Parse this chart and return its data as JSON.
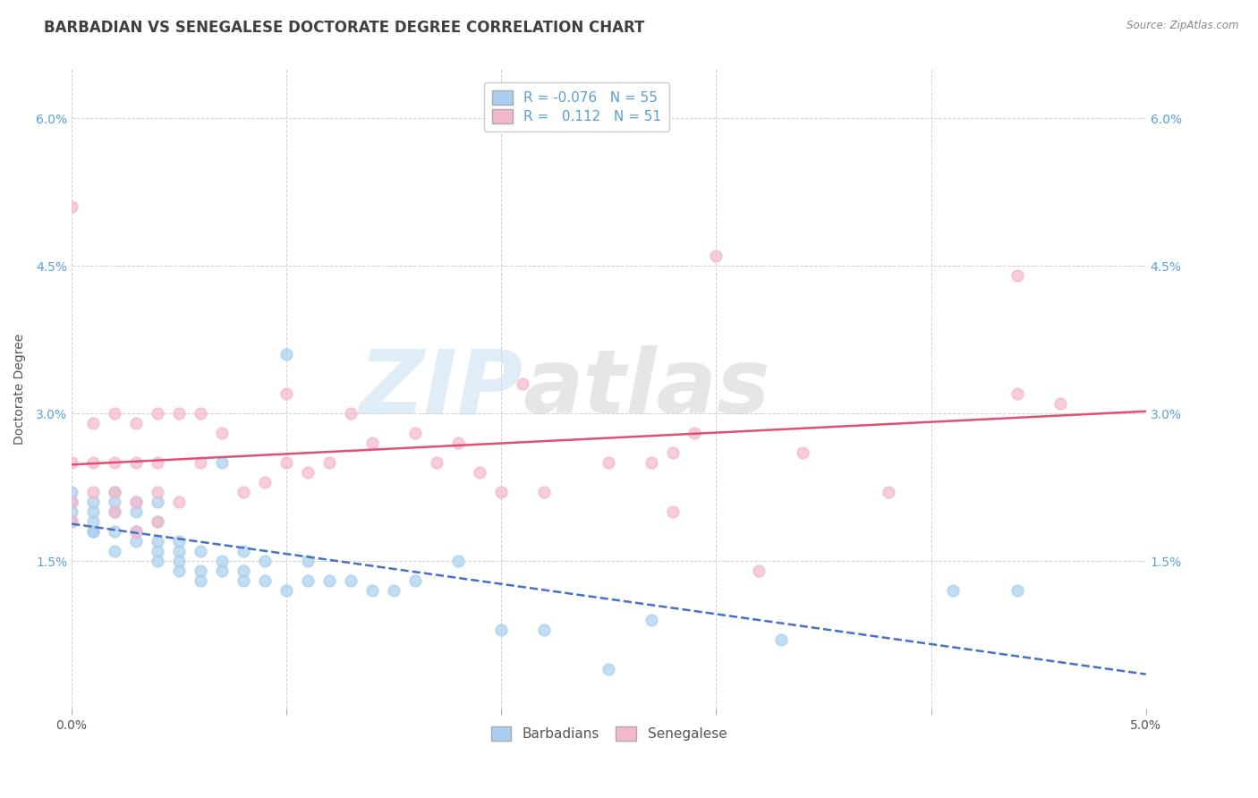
{
  "title": "BARBADIAN VS SENEGALESE DOCTORATE DEGREE CORRELATION CHART",
  "source_text": "Source: ZipAtlas.com",
  "ylabel": "Doctorate Degree",
  "legend_barbadians": "Barbadians",
  "legend_senegalese": "Senegalese",
  "R_barbadians": -0.076,
  "N_barbadians": 55,
  "R_senegalese": 0.112,
  "N_senegalese": 51,
  "xlim": [
    0.0,
    0.05
  ],
  "ylim": [
    0.0,
    0.065
  ],
  "xtick_vals": [
    0.0,
    0.01,
    0.02,
    0.03,
    0.04,
    0.05
  ],
  "xtick_labels": [
    "0.0%",
    "",
    "",
    "",
    "",
    "5.0%"
  ],
  "ytick_vals": [
    0.0,
    0.015,
    0.03,
    0.045,
    0.06
  ],
  "ytick_labels": [
    "",
    "1.5%",
    "3.0%",
    "4.5%",
    "6.0%"
  ],
  "color_barbadians": "#aacfee",
  "color_senegalese": "#f4b8cc",
  "color_line_barbadians": "#4472c4",
  "color_line_senegalese": "#e05070",
  "background_color": "#ffffff",
  "grid_color": "#cccccc",
  "title_color": "#404040",
  "barbadians_x": [
    0.0,
    0.0,
    0.0,
    0.0,
    0.001,
    0.001,
    0.001,
    0.001,
    0.001,
    0.002,
    0.002,
    0.002,
    0.002,
    0.002,
    0.003,
    0.003,
    0.003,
    0.003,
    0.004,
    0.004,
    0.004,
    0.004,
    0.004,
    0.005,
    0.005,
    0.005,
    0.005,
    0.006,
    0.006,
    0.006,
    0.007,
    0.007,
    0.007,
    0.008,
    0.008,
    0.008,
    0.009,
    0.009,
    0.01,
    0.01,
    0.011,
    0.011,
    0.012,
    0.013,
    0.014,
    0.015,
    0.016,
    0.018,
    0.02,
    0.022,
    0.025,
    0.027,
    0.033,
    0.041,
    0.044
  ],
  "barbadians_y": [
    0.019,
    0.02,
    0.021,
    0.022,
    0.018,
    0.018,
    0.019,
    0.02,
    0.021,
    0.016,
    0.018,
    0.02,
    0.021,
    0.022,
    0.017,
    0.018,
    0.02,
    0.021,
    0.015,
    0.016,
    0.017,
    0.019,
    0.021,
    0.014,
    0.015,
    0.016,
    0.017,
    0.013,
    0.014,
    0.016,
    0.014,
    0.015,
    0.025,
    0.013,
    0.014,
    0.016,
    0.013,
    0.015,
    0.012,
    0.036,
    0.013,
    0.015,
    0.013,
    0.013,
    0.012,
    0.012,
    0.013,
    0.015,
    0.008,
    0.008,
    0.004,
    0.009,
    0.007,
    0.012,
    0.012
  ],
  "senegalese_x": [
    0.0,
    0.0,
    0.0,
    0.0,
    0.001,
    0.001,
    0.001,
    0.002,
    0.002,
    0.002,
    0.002,
    0.003,
    0.003,
    0.003,
    0.003,
    0.004,
    0.004,
    0.004,
    0.004,
    0.005,
    0.005,
    0.006,
    0.006,
    0.007,
    0.008,
    0.009,
    0.01,
    0.01,
    0.011,
    0.012,
    0.013,
    0.014,
    0.016,
    0.017,
    0.018,
    0.019,
    0.02,
    0.021,
    0.022,
    0.025,
    0.027,
    0.028,
    0.028,
    0.029,
    0.03,
    0.032,
    0.034,
    0.038,
    0.044,
    0.044,
    0.046
  ],
  "senegalese_y": [
    0.019,
    0.021,
    0.025,
    0.051,
    0.022,
    0.025,
    0.029,
    0.02,
    0.022,
    0.025,
    0.03,
    0.018,
    0.021,
    0.025,
    0.029,
    0.019,
    0.022,
    0.025,
    0.03,
    0.021,
    0.03,
    0.025,
    0.03,
    0.028,
    0.022,
    0.023,
    0.025,
    0.032,
    0.024,
    0.025,
    0.03,
    0.027,
    0.028,
    0.025,
    0.027,
    0.024,
    0.022,
    0.033,
    0.022,
    0.025,
    0.025,
    0.02,
    0.026,
    0.028,
    0.046,
    0.014,
    0.026,
    0.022,
    0.032,
    0.044,
    0.031
  ],
  "watermark_zip": "ZIP",
  "watermark_atlas": "atlas",
  "title_fontsize": 12,
  "label_fontsize": 10,
  "tick_fontsize": 10
}
